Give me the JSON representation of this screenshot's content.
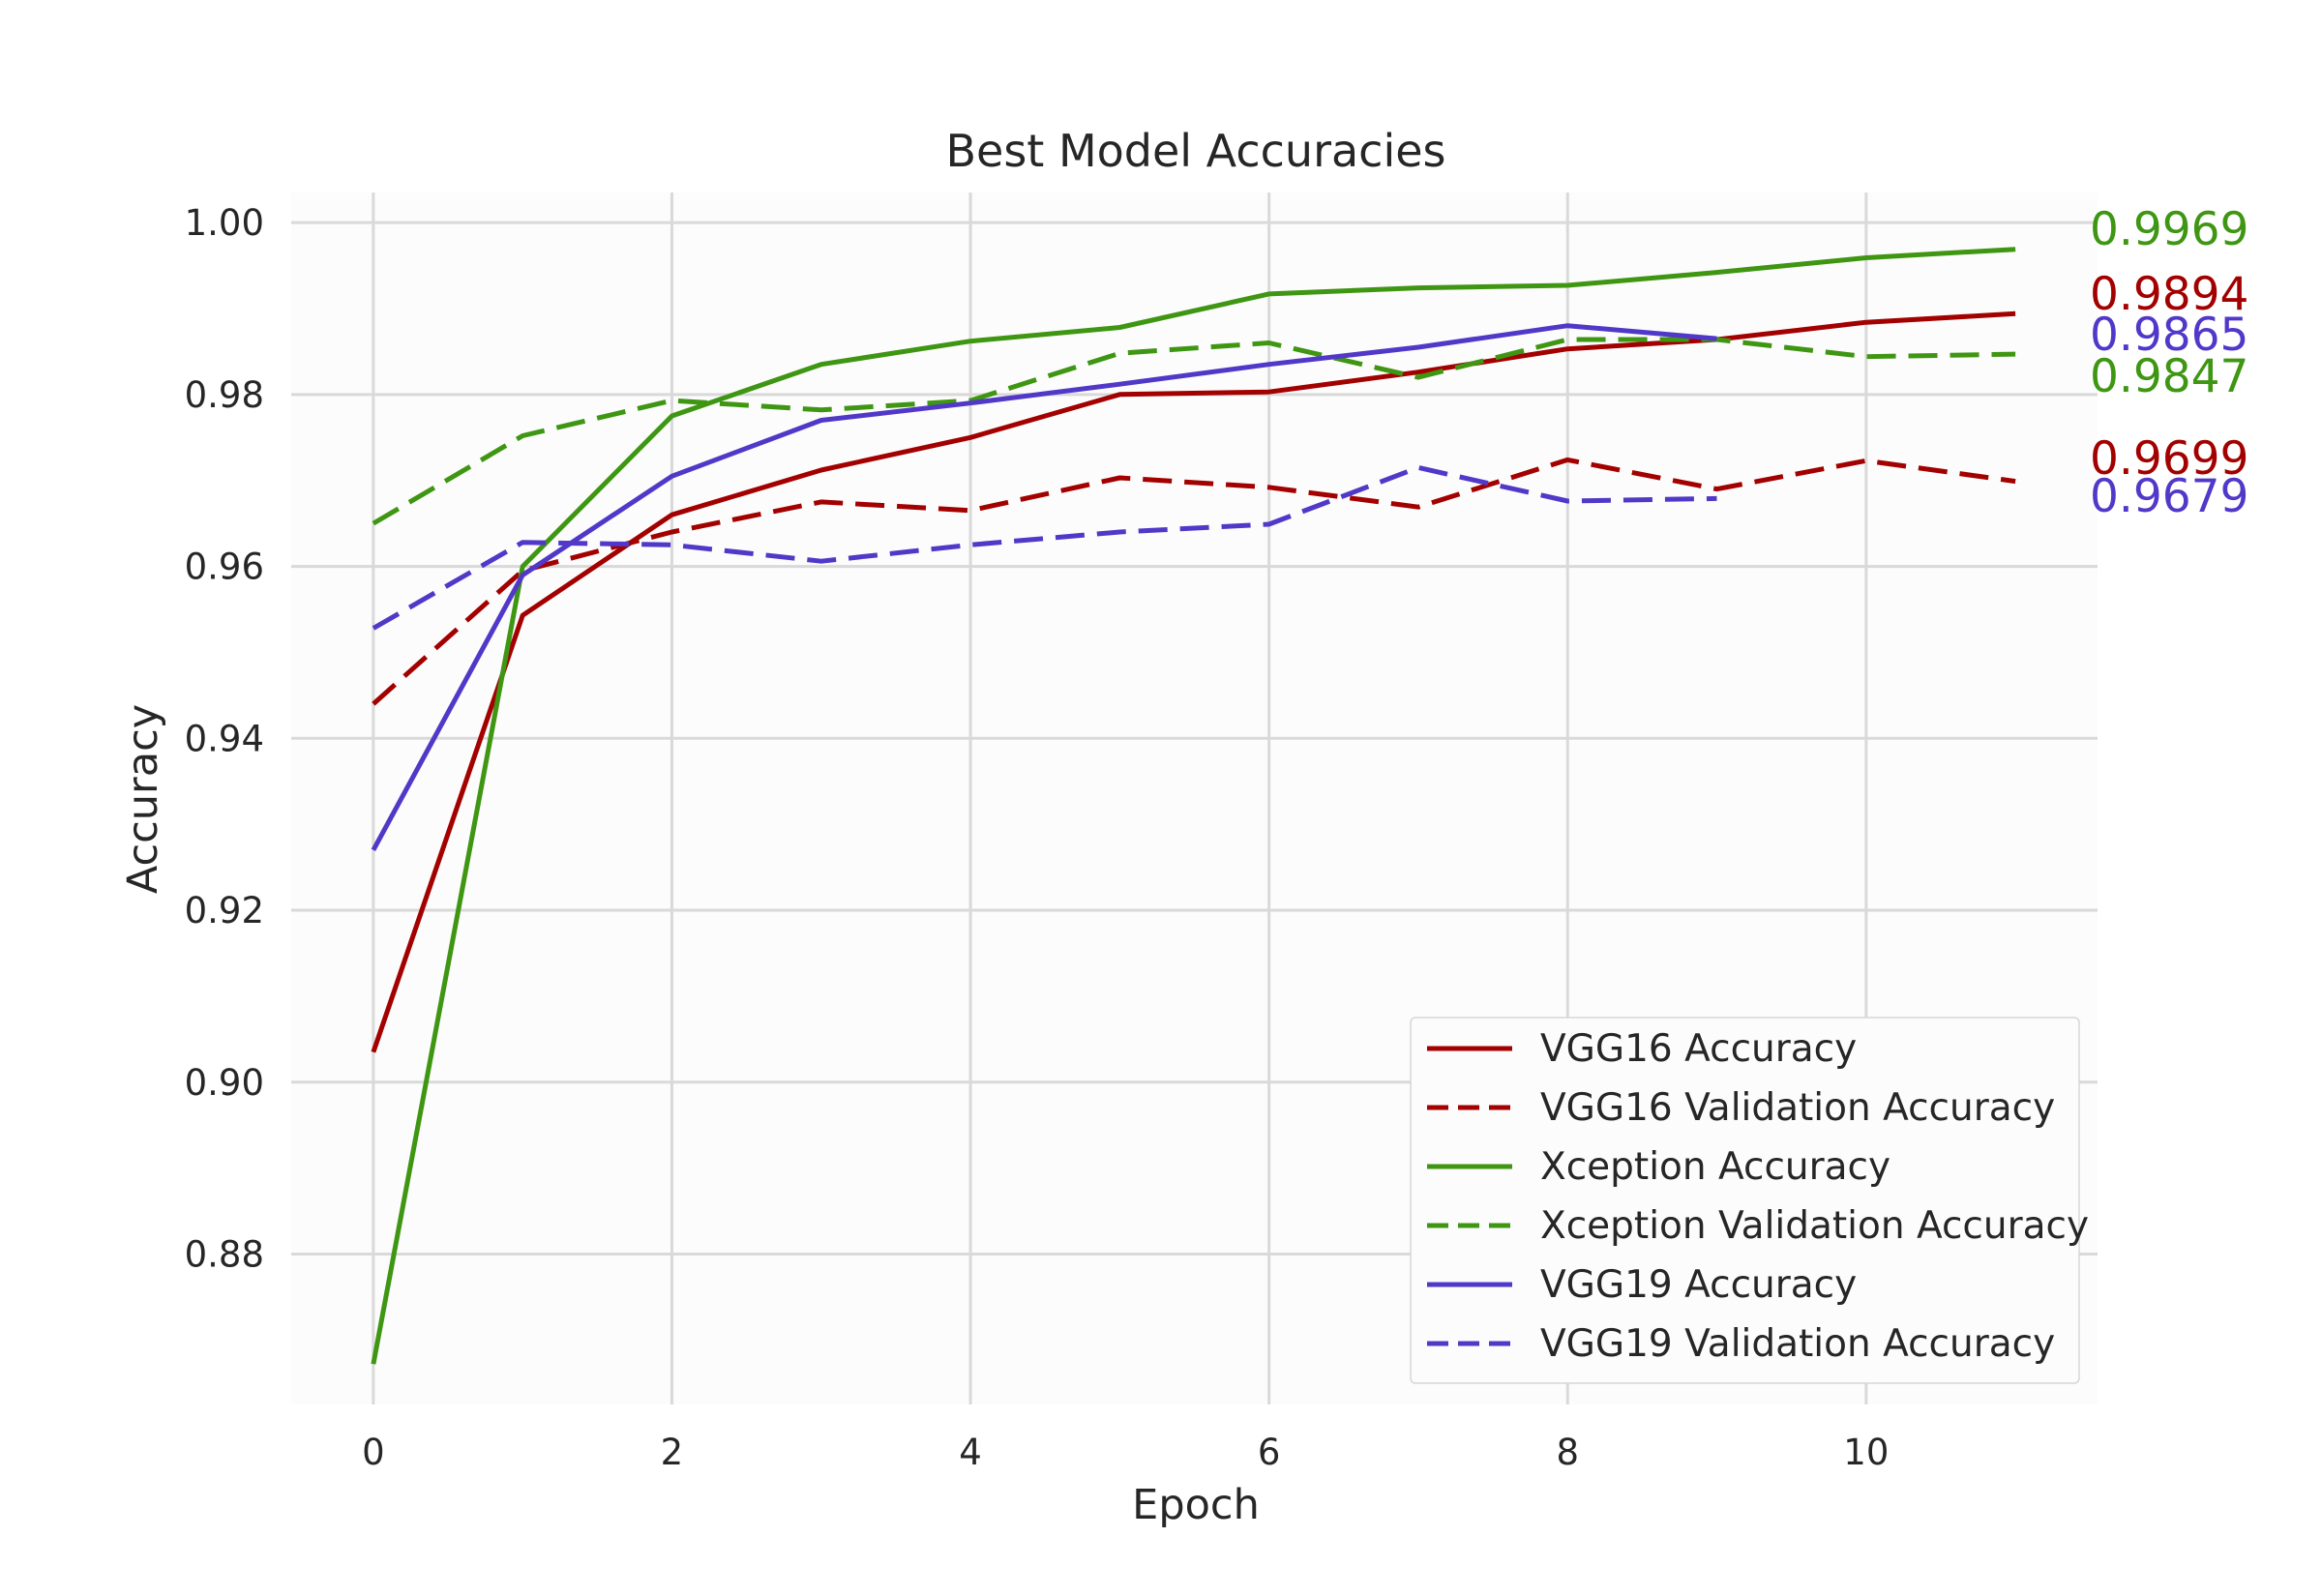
{
  "chart_data": {
    "type": "line",
    "title": "Best Model Accuracies",
    "xlabel": "Epoch",
    "ylabel": "Accuracy",
    "xlim": [
      -0.55,
      11.55
    ],
    "ylim": [
      0.8625,
      1.0035
    ],
    "xticks": [
      0,
      2,
      4,
      6,
      8,
      10
    ],
    "xtick_labels": [
      "0",
      "2",
      "4",
      "6",
      "8",
      "10"
    ],
    "yticks": [
      0.88,
      0.9,
      0.92,
      0.94,
      0.96,
      0.98,
      1.0
    ],
    "ytick_labels": [
      "0.88",
      "0.90",
      "0.92",
      "0.94",
      "0.96",
      "0.98",
      "1.00"
    ],
    "grid": true,
    "legend_position": "lower-right",
    "series": [
      {
        "name": "VGG16 Accuracy",
        "color": "#a30000",
        "dash": "solid",
        "x": [
          0,
          1,
          2,
          3,
          4,
          5,
          6,
          7,
          8,
          9,
          10,
          11
        ],
        "values": [
          0.9035,
          0.9543,
          0.966,
          0.9712,
          0.975,
          0.98,
          0.9803,
          0.9826,
          0.9853,
          0.9864,
          0.9884,
          0.9894
        ]
      },
      {
        "name": "VGG16 Validation Accuracy",
        "color": "#a30000",
        "dash": "dashed",
        "x": [
          0,
          1,
          2,
          3,
          4,
          5,
          6,
          7,
          8,
          9,
          10,
          11
        ],
        "values": [
          0.944,
          0.9595,
          0.964,
          0.9675,
          0.9665,
          0.9703,
          0.9692,
          0.9669,
          0.9724,
          0.969,
          0.9723,
          0.9699
        ]
      },
      {
        "name": "Xception Accuracy",
        "color": "#3e9612",
        "dash": "solid",
        "x": [
          0,
          1,
          2,
          3,
          4,
          5,
          6,
          7,
          8,
          9,
          10,
          11
        ],
        "values": [
          0.8672,
          0.96,
          0.9775,
          0.9835,
          0.9862,
          0.9878,
          0.9917,
          0.9924,
          0.9927,
          0.9942,
          0.9959,
          0.9969
        ]
      },
      {
        "name": "Xception Validation Accuracy",
        "color": "#3e9612",
        "dash": "dashed",
        "x": [
          0,
          1,
          2,
          3,
          4,
          5,
          6,
          7,
          8,
          9,
          10,
          11
        ],
        "values": [
          0.965,
          0.9752,
          0.9793,
          0.9782,
          0.9793,
          0.9848,
          0.986,
          0.982,
          0.9864,
          0.9864,
          0.9844,
          0.9847
        ]
      },
      {
        "name": "VGG19 Accuracy",
        "color": "#5138c8",
        "dash": "solid",
        "x": [
          0,
          1,
          2,
          3,
          4,
          5,
          6,
          7,
          8,
          9
        ],
        "values": [
          0.927,
          0.959,
          0.9705,
          0.977,
          0.979,
          0.9812,
          0.9835,
          0.9855,
          0.988,
          0.9865
        ]
      },
      {
        "name": "VGG19 Validation Accuracy",
        "color": "#5138c8",
        "dash": "dashed",
        "x": [
          0,
          1,
          2,
          3,
          4,
          5,
          6,
          7,
          8,
          9
        ],
        "values": [
          0.9528,
          0.9628,
          0.9625,
          0.9606,
          0.9625,
          0.964,
          0.9649,
          0.9715,
          0.9676,
          0.9679
        ]
      }
    ],
    "end_labels": [
      {
        "text": "0.9969",
        "color": "#3e9612"
      },
      {
        "text": "0.9894",
        "color": "#a30000"
      },
      {
        "text": "0.9865",
        "color": "#5138c8"
      },
      {
        "text": "0.9847",
        "color": "#3e9612"
      },
      {
        "text": "0.9699",
        "color": "#a30000"
      },
      {
        "text": "0.9679",
        "color": "#5138c8"
      }
    ]
  }
}
